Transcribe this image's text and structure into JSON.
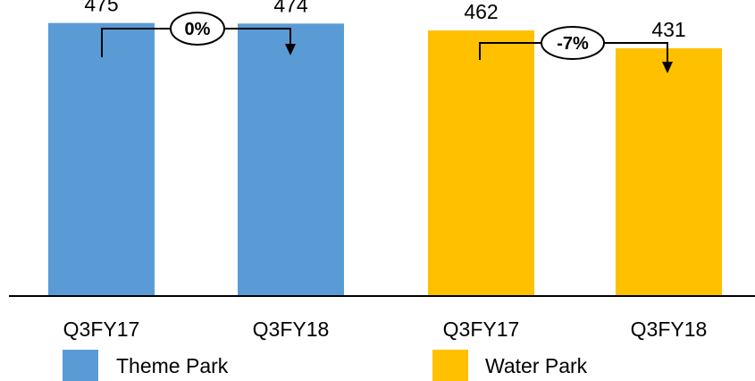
{
  "chart_data": {
    "type": "bar",
    "categories": [
      "Q3FY17",
      "Q3FY18",
      "Q3FY17",
      "Q3FY18"
    ],
    "values": [
      475,
      474,
      462,
      431
    ],
    "series_of_bar": [
      "Theme Park",
      "Theme Park",
      "Water Park",
      "Water Park"
    ],
    "legend": [
      {
        "name": "Theme Park",
        "color": "#5B9BD5"
      },
      {
        "name": "Water Park",
        "color": "#FFC000"
      }
    ],
    "annotations": [
      {
        "label": "0%",
        "from_index": 0,
        "to_index": 1
      },
      {
        "label": "-7%",
        "from_index": 2,
        "to_index": 3
      }
    ],
    "title": "",
    "xlabel": "",
    "ylabel": "",
    "legend_position": "bottom",
    "grid": false
  }
}
